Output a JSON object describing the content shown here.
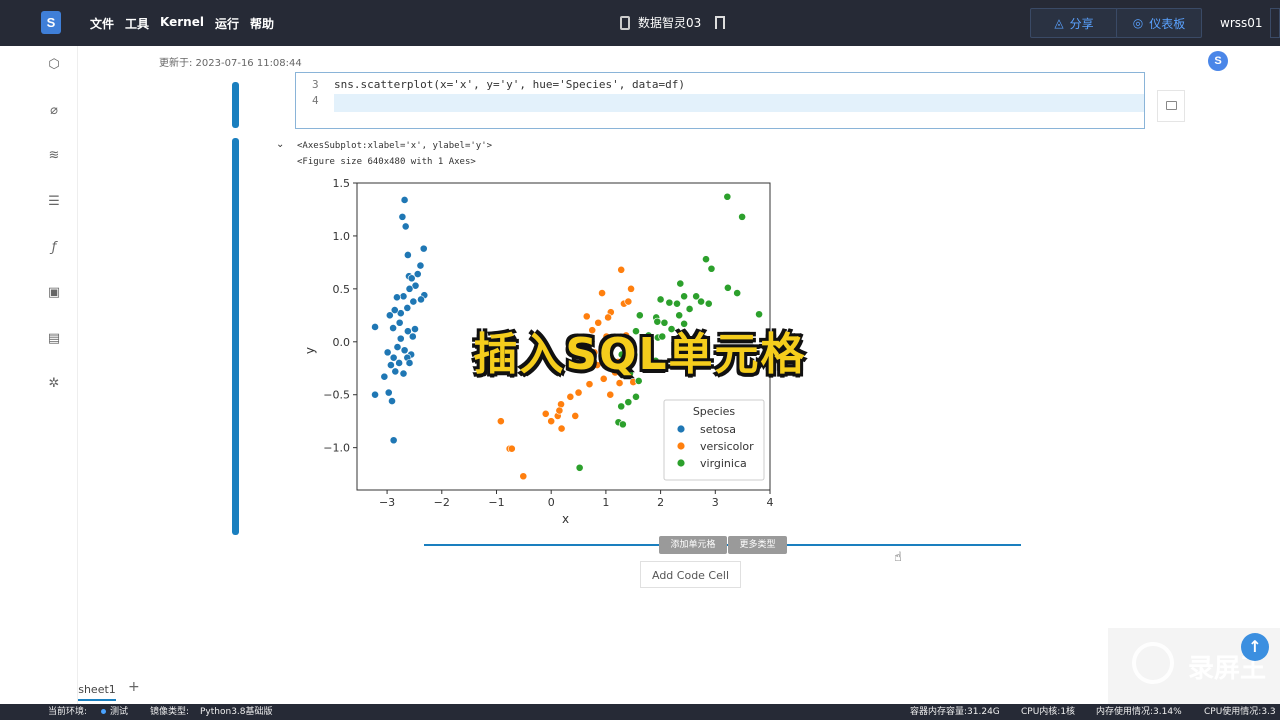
{
  "topbar": {
    "logo": "S",
    "menu": [
      "文件",
      "工具",
      "Kernel",
      "运行",
      "帮助"
    ],
    "doc_title": "数据智灵03",
    "share": "分享",
    "dashboard": "仪表板",
    "user": "wrss01"
  },
  "notebook": {
    "updated": "更新于: 2023-07-16 11:08:44",
    "avatar": "S",
    "code_lines": [
      {
        "num": "3",
        "text": "sns.scatterplot(x='x', y='y', hue='Species', data=df)"
      },
      {
        "num": "4",
        "text": ""
      }
    ],
    "output_lines": [
      "<AxesSubplot:xlabel='x', ylabel='y'>",
      "<Figure size 640x480 with 1 Axes>"
    ],
    "add_cell": "添加单元格",
    "more_types": "更多类型",
    "add_code_cell": "Add Code Cell"
  },
  "overlay_caption": "插入SQL单元格",
  "sheet": {
    "tab": "sheet1",
    "add": "+"
  },
  "statusbar": {
    "env_label": "当前环境:",
    "env_value": "测试",
    "image_label": "镜像类型:",
    "image_value": "Python3.8基础版",
    "mem": "容器内存容量:31.24G",
    "cpu_cores": "CPU内核:1核",
    "mem_usage": "内存使用情况:3.14%",
    "cpu_usage": "CPU使用情况:3.3"
  },
  "watermark": "录屏王",
  "colors": {
    "setosa": "#1f77b4",
    "versicolor": "#ff7f0e",
    "virginica": "#2ca02c",
    "accent": "#1a7fbf",
    "topbar": "#262a36"
  },
  "chart_data": {
    "type": "scatter",
    "xlabel": "x",
    "ylabel": "y",
    "xlim": [
      -3.55,
      4.0
    ],
    "ylim": [
      -1.4,
      1.5
    ],
    "xticks": [
      -3,
      -2,
      -1,
      0,
      1,
      2,
      3,
      4
    ],
    "yticks": [
      -1.0,
      -0.5,
      0.0,
      0.5,
      1.0,
      1.5
    ],
    "legend_title": "Species",
    "legend_position": "lower right",
    "series": [
      {
        "name": "setosa",
        "points": [
          [
            -2.68,
            1.34
          ],
          [
            -2.72,
            1.18
          ],
          [
            -2.66,
            1.09
          ],
          [
            -2.62,
            0.82
          ],
          [
            -2.6,
            0.62
          ],
          [
            -2.55,
            0.6
          ],
          [
            -2.48,
            0.53
          ],
          [
            -2.59,
            0.5
          ],
          [
            -2.7,
            0.43
          ],
          [
            -2.33,
            0.88
          ],
          [
            -2.39,
            0.72
          ],
          [
            -2.44,
            0.64
          ],
          [
            -2.32,
            0.44
          ],
          [
            -2.38,
            0.4
          ],
          [
            -2.52,
            0.38
          ],
          [
            -2.63,
            0.32
          ],
          [
            -2.75,
            0.27
          ],
          [
            -2.86,
            0.3
          ],
          [
            -2.77,
            0.18
          ],
          [
            -2.89,
            0.13
          ],
          [
            -2.62,
            0.1
          ],
          [
            -2.53,
            0.05
          ],
          [
            -2.49,
            0.12
          ],
          [
            -2.75,
            0.03
          ],
          [
            -2.81,
            -0.05
          ],
          [
            -2.99,
            -0.1
          ],
          [
            -2.68,
            -0.08
          ],
          [
            -2.56,
            -0.12
          ],
          [
            -2.63,
            -0.15
          ],
          [
            -2.88,
            -0.15
          ],
          [
            -2.78,
            -0.2
          ],
          [
            -2.59,
            -0.2
          ],
          [
            -2.93,
            -0.22
          ],
          [
            -2.85,
            -0.28
          ],
          [
            -2.7,
            -0.3
          ],
          [
            -3.22,
            0.14
          ],
          [
            -2.95,
            0.25
          ],
          [
            -2.82,
            0.42
          ],
          [
            -3.05,
            -0.33
          ],
          [
            -2.97,
            -0.48
          ],
          [
            -2.91,
            -0.56
          ],
          [
            -3.22,
            -0.5
          ],
          [
            -2.88,
            -0.93
          ]
        ]
      },
      {
        "name": "versicolor",
        "points": [
          [
            1.28,
            0.68
          ],
          [
            0.93,
            0.46
          ],
          [
            1.46,
            0.5
          ],
          [
            1.09,
            0.28
          ],
          [
            1.33,
            0.36
          ],
          [
            1.37,
            0.06
          ],
          [
            1.04,
            0.23
          ],
          [
            0.86,
            0.18
          ],
          [
            0.65,
            0.24
          ],
          [
            0.75,
            0.11
          ],
          [
            0.55,
            0.01
          ],
          [
            0.45,
            -0.1
          ],
          [
            1.01,
            0.05
          ],
          [
            0.95,
            -0.13
          ],
          [
            1.22,
            -0.19
          ],
          [
            1.17,
            -0.29
          ],
          [
            0.96,
            -0.35
          ],
          [
            0.84,
            -0.22
          ],
          [
            1.25,
            -0.39
          ],
          [
            1.5,
            -0.38
          ],
          [
            1.08,
            -0.5
          ],
          [
            0.7,
            -0.4
          ],
          [
            0.5,
            -0.48
          ],
          [
            0.35,
            -0.52
          ],
          [
            0.18,
            -0.59
          ],
          [
            0.12,
            -0.7
          ],
          [
            0.0,
            -0.75
          ],
          [
            -0.1,
            -0.68
          ],
          [
            0.19,
            -0.82
          ],
          [
            0.44,
            -0.7
          ],
          [
            -0.92,
            -0.75
          ],
          [
            -0.76,
            -1.01
          ],
          [
            -0.72,
            -1.01
          ],
          [
            -0.51,
            -1.27
          ],
          [
            0.79,
            -0.1
          ],
          [
            0.64,
            -0.05
          ],
          [
            0.15,
            -0.65
          ],
          [
            1.41,
            0.38
          ]
        ]
      },
      {
        "name": "virginica",
        "points": [
          [
            3.22,
            1.37
          ],
          [
            3.49,
            1.18
          ],
          [
            2.93,
            0.69
          ],
          [
            2.83,
            0.78
          ],
          [
            3.23,
            0.51
          ],
          [
            3.4,
            0.46
          ],
          [
            2.36,
            0.55
          ],
          [
            2.65,
            0.43
          ],
          [
            2.53,
            0.31
          ],
          [
            2.3,
            0.36
          ],
          [
            2.16,
            0.37
          ],
          [
            2.0,
            0.4
          ],
          [
            1.92,
            0.23
          ],
          [
            2.07,
            0.18
          ],
          [
            2.34,
            0.25
          ],
          [
            2.43,
            0.43
          ],
          [
            2.74,
            0.38
          ],
          [
            2.88,
            0.36
          ],
          [
            2.43,
            0.17
          ],
          [
            1.95,
            0.04
          ],
          [
            1.94,
            0.19
          ],
          [
            2.2,
            0.12
          ],
          [
            1.62,
            0.25
          ],
          [
            1.55,
            0.1
          ],
          [
            1.78,
            0.06
          ],
          [
            1.76,
            -0.09
          ],
          [
            1.29,
            -0.12
          ],
          [
            1.44,
            -0.3
          ],
          [
            1.52,
            -0.12
          ],
          [
            1.86,
            -0.19
          ],
          [
            1.6,
            -0.37
          ],
          [
            1.29,
            -0.25
          ],
          [
            1.55,
            -0.52
          ],
          [
            1.41,
            -0.57
          ],
          [
            1.28,
            -0.61
          ],
          [
            1.23,
            -0.76
          ],
          [
            1.31,
            -0.78
          ],
          [
            0.52,
            -1.19
          ],
          [
            3.8,
            0.26
          ],
          [
            2.03,
            0.05
          ],
          [
            1.91,
            -0.18
          ]
        ]
      }
    ]
  }
}
